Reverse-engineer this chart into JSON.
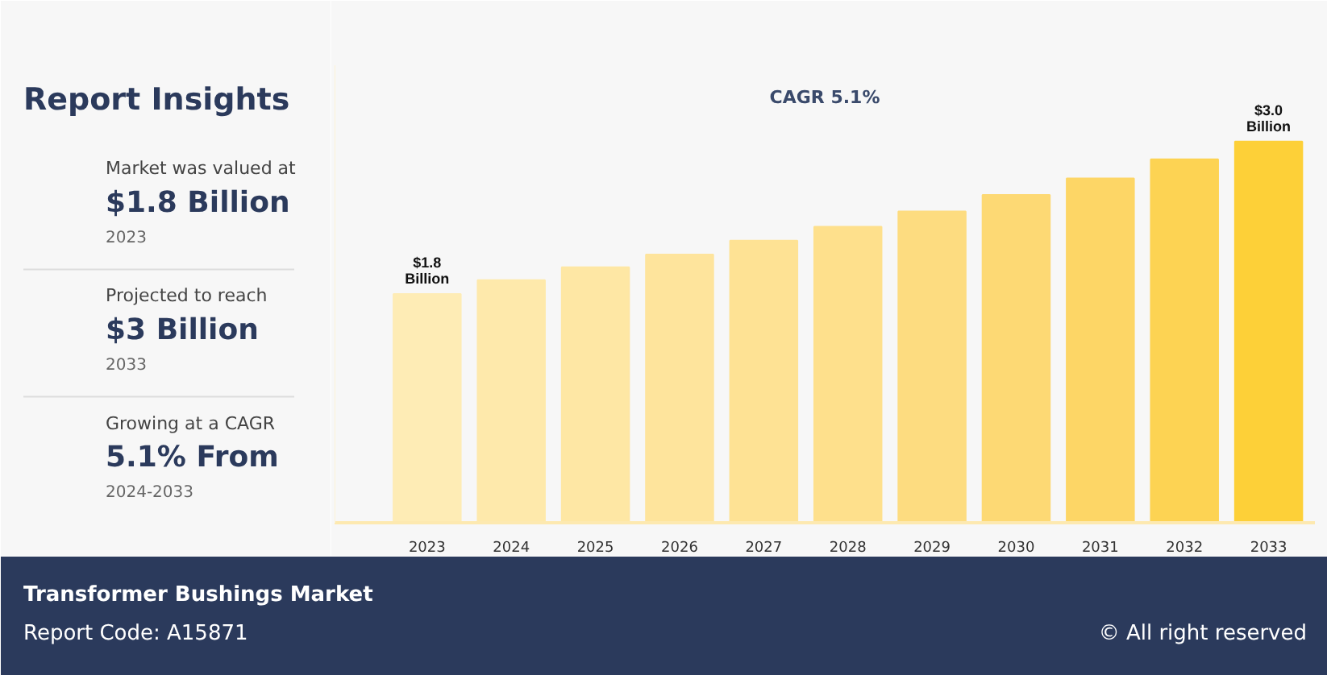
{
  "chart_data": [
    {
      "type": "other",
      "title": "Report Insights",
      "annotations": [
        "Market was valued at",
        "$1.8 Billion",
        "2023",
        "Projected to reach",
        "$3 Billion",
        "2033",
        "Growing at a CAGR",
        "5.1% From",
        "2024-2033"
      ]
    },
    {
      "type": "bar",
      "tick_labels": "x",
      "categories": [
        "2023",
        "2024",
        "2025",
        "2026",
        "2027",
        "2028",
        "2029",
        "2030",
        "2031",
        "2032",
        "2033"
      ],
      "values": [
        1.8,
        1.91,
        2.01,
        2.11,
        2.22,
        2.33,
        2.45,
        2.58,
        2.71,
        2.86,
        3.0
      ],
      "colors": [
        "#feecb5",
        "#fee9ab",
        "#fee7a4",
        "#fee49c",
        "#fee294",
        "#fee08c",
        "#fddc80",
        "#fdd974",
        "#fdd666",
        "#fdd353",
        "#fdd038"
      ],
      "value_labels": [
        "$1.8 Billion",
        null,
        null,
        null,
        null,
        null,
        null,
        null,
        null,
        null,
        "$3.0 Billion"
      ],
      "annotations": [
        "CAGR 5.1%"
      ]
    },
    {
      "type": "other",
      "annotations": [
        "Transformer Bushings Market",
        "Report Code: A15871",
        "© All right reserved"
      ]
    }
  ]
}
